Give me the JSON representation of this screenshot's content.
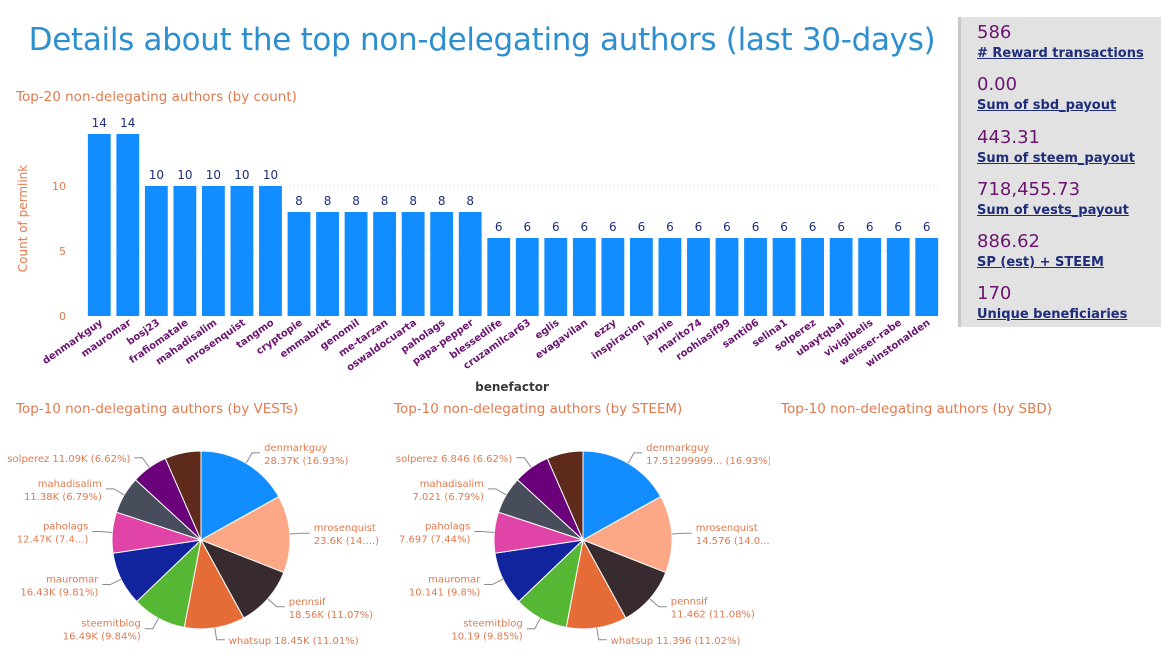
{
  "page": {
    "title": "Details about the top non-delegating authors (last 30-days)"
  },
  "colors": {
    "title": "#2e8fd0",
    "visual_title": "#e07a4f",
    "bar": "#118dff",
    "bar_label": "#1f2d7a",
    "category_label": "#6b1470",
    "kpi_value": "#6b1470",
    "kpi_label": "#1f2d7a",
    "kpi_panel_bg": "#e2e2e2"
  },
  "kpis": [
    {
      "value": "586",
      "label": "# Reward transactions"
    },
    {
      "value": "0.00",
      "label": "Sum of sbd_payout"
    },
    {
      "value": "443.31",
      "label": "Sum of steem_payout"
    },
    {
      "value": "718,455.73",
      "label": "Sum of vests_payout"
    },
    {
      "value": "886.62",
      "label": "SP (est) + STEEM"
    },
    {
      "value": "170",
      "label": "Unique beneficiaries"
    }
  ],
  "visuals": {
    "bar_title": "Top-20 non-delegating authors (by count)",
    "vests_title": "Top-10 non-delegating authors (by VESTs)",
    "steem_title": "Top-10 non-delegating authors (by STEEM)",
    "sbd_title": "Top-10 non-delegating authors (by SBD)"
  },
  "chart_data": [
    {
      "type": "bar",
      "title": "Top-20 non-delegating authors (by count)",
      "xlabel": "benefactor",
      "ylabel": "Count of permlink",
      "ylim": [
        0,
        15
      ],
      "yticks": [
        0,
        5,
        10
      ],
      "grid": true,
      "categories": [
        "denmarkguy",
        "mauromar",
        "bosj23",
        "frafiomatale",
        "mahadisalim",
        "mrosenquist",
        "tangmo",
        "cryptopie",
        "emmabritt",
        "genomil",
        "me-tarzan",
        "oswaldocuarta",
        "paholags",
        "papa-pepper",
        "blessedlife",
        "cruzamilcar63",
        "eglis",
        "evagavilan",
        "ezzy",
        "inspiracion",
        "jaynie",
        "marito74",
        "roohiasif99",
        "santi06",
        "selina1",
        "solperez",
        "ubaytqbal",
        "vivigibelis",
        "weisser-rabe",
        "winstonalden"
      ],
      "values": [
        14,
        14,
        10,
        10,
        10,
        10,
        10,
        8,
        8,
        8,
        8,
        8,
        8,
        8,
        6,
        6,
        6,
        6,
        6,
        6,
        6,
        6,
        6,
        6,
        6,
        6,
        6,
        6,
        6,
        6
      ]
    },
    {
      "type": "pie",
      "title": "Top-10 non-delegating authors (by VESTs)",
      "slices": [
        {
          "name": "denmarkguy",
          "value": 28.37,
          "label": "28.37K (16.93%)",
          "color": "#118dff"
        },
        {
          "name": "mrosenquist",
          "value": 23.6,
          "label": "23.6K (14....)",
          "color": "#fca786"
        },
        {
          "name": "pennsif",
          "value": 18.56,
          "label": "18.56K (11.07%)",
          "color": "#372b30"
        },
        {
          "name": "whatsup",
          "value": 18.45,
          "label": "18.45K (11.01%)",
          "color": "#e66c37"
        },
        {
          "name": "steemitblog",
          "value": 16.49,
          "label": "16.49K (9.84%)",
          "color": "#55b733"
        },
        {
          "name": "mauromar",
          "value": 16.43,
          "label": "16.43K (9.81%)",
          "color": "#12239e"
        },
        {
          "name": "paholags",
          "value": 12.47,
          "label": "12.47K (7.4...)",
          "color": "#e044a7"
        },
        {
          "name": "mahadisalim",
          "value": 11.38,
          "label": "11.38K (6.79%)",
          "color": "#474d5b"
        },
        {
          "name": "solperez",
          "value": 11.09,
          "label": "11.09K (6.62%)",
          "color": "#6b007b"
        },
        {
          "name": "",
          "value": 11.0,
          "label": "",
          "color": "#5d2a1c"
        }
      ]
    },
    {
      "type": "pie",
      "title": "Top-10 non-delegating authors (by STEEM)",
      "slices": [
        {
          "name": "denmarkguy",
          "value": 17.513,
          "label": "17.51299999... (16.93%)",
          "color": "#118dff"
        },
        {
          "name": "mrosenquist",
          "value": 14.576,
          "label": "14.576 (14.0...)",
          "color": "#fca786"
        },
        {
          "name": "pennsif",
          "value": 11.462,
          "label": "11.462 (11.08%)",
          "color": "#372b30"
        },
        {
          "name": "whatsup",
          "value": 11.396,
          "label": "11.396 (11.02%)",
          "color": "#e66c37"
        },
        {
          "name": "steemitblog",
          "value": 10.19,
          "label": "10.19 (9.85%)",
          "color": "#55b733"
        },
        {
          "name": "mauromar",
          "value": 10.141,
          "label": "10.141 (9.8%)",
          "color": "#12239e"
        },
        {
          "name": "paholags",
          "value": 7.697,
          "label": "7.697 (7.44%)",
          "color": "#e044a7"
        },
        {
          "name": "mahadisalim",
          "value": 7.021,
          "label": "7.021 (6.79%)",
          "color": "#474d5b"
        },
        {
          "name": "solperez",
          "value": 6.846,
          "label": "6.846 (6.62%)",
          "color": "#6b007b"
        },
        {
          "name": "",
          "value": 6.8,
          "label": "",
          "color": "#5d2a1c"
        }
      ]
    }
  ]
}
